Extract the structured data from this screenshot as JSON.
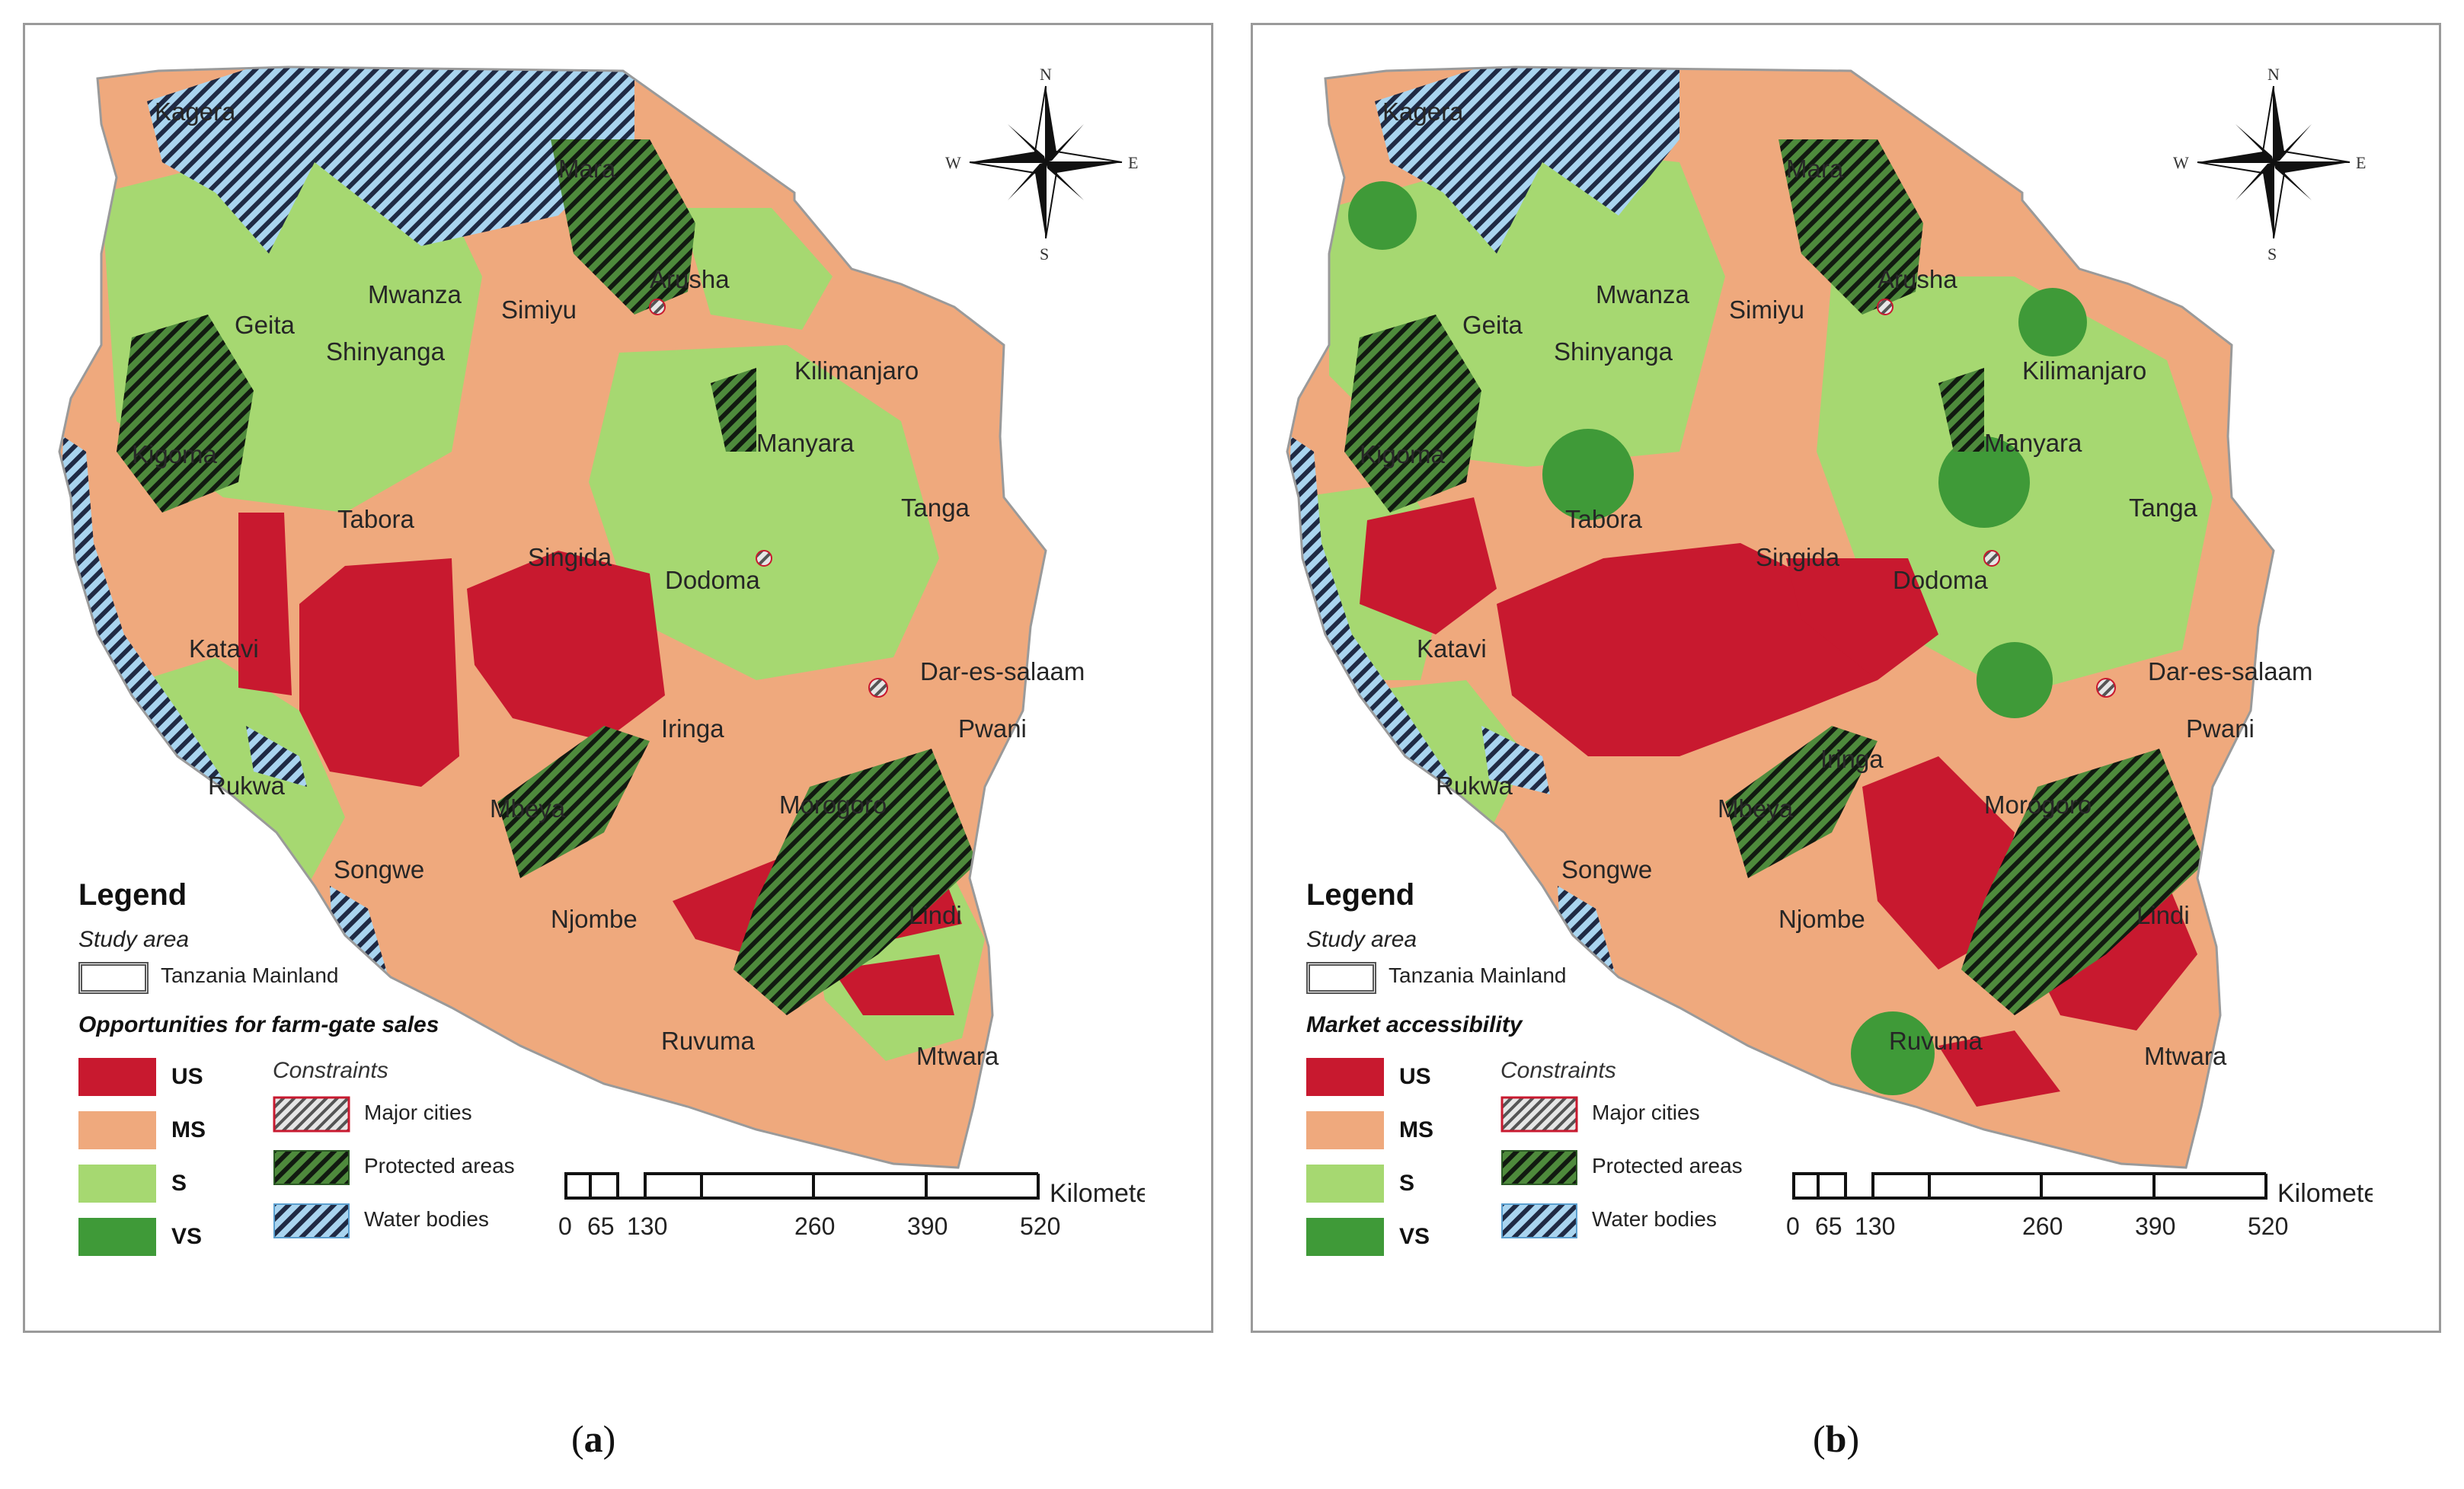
{
  "panels": [
    {
      "id": "a",
      "caption": "a",
      "legend_title": "Legend",
      "study_area_title": "Study area",
      "study_area_label": "Tanzania Mainland",
      "classification_title": "Opportunities for farm-gate sales",
      "classes": [
        {
          "code": "US",
          "color": "#c8192f"
        },
        {
          "code": "MS",
          "color": "#efa97d"
        },
        {
          "code": "S",
          "color": "#a6d871"
        },
        {
          "code": "VS",
          "color": "#3f9a38"
        }
      ],
      "constraints_title": "Constraints",
      "constraints": [
        {
          "label": "Major cities",
          "icon": "hatch-red-border"
        },
        {
          "label": "Protected areas",
          "icon": "hatch-green"
        },
        {
          "label": "Water bodies",
          "icon": "hatch-blue"
        }
      ],
      "scale": {
        "ticks": [
          "0",
          "65",
          "130",
          "260",
          "390",
          "520"
        ],
        "unit": "Kilometers"
      },
      "compass": {
        "n": "N",
        "s": "S",
        "e": "E",
        "w": "W"
      },
      "regions": [
        "Kagera",
        "Mara",
        "Mwanza",
        "Simiyu",
        "Arusha",
        "Geita",
        "Shinyanga",
        "Kilimanjaro",
        "Kigoma",
        "Manyara",
        "Tabora",
        "Tanga",
        "Singida",
        "Dodoma",
        "Katavi",
        "Dar-es-salaam",
        "Pwani",
        "Iringa",
        "Rukwa",
        "Mbeya",
        "Morogoro",
        "Songwe",
        "Lindi",
        "Njombe",
        "Ruvuma",
        "Mtwara"
      ]
    },
    {
      "id": "b",
      "caption": "b",
      "legend_title": "Legend",
      "study_area_title": "Study area",
      "study_area_label": "Tanzania Mainland",
      "classification_title": "Market accessibility",
      "classes": [
        {
          "code": "US",
          "color": "#c8192f"
        },
        {
          "code": "MS",
          "color": "#efa97d"
        },
        {
          "code": "S",
          "color": "#a6d871"
        },
        {
          "code": "VS",
          "color": "#3f9a38"
        }
      ],
      "constraints_title": "Constraints",
      "constraints": [
        {
          "label": "Major cities",
          "icon": "hatch-red-border"
        },
        {
          "label": "Protected areas",
          "icon": "hatch-green"
        },
        {
          "label": "Water bodies",
          "icon": "hatch-blue"
        }
      ],
      "scale": {
        "ticks": [
          "0",
          "65",
          "130",
          "260",
          "390",
          "520"
        ],
        "unit": "Kilometers"
      },
      "compass": {
        "n": "N",
        "s": "S",
        "e": "E",
        "w": "W"
      },
      "regions": [
        "Kagera",
        "Mara",
        "Mwanza",
        "Simiyu",
        "Arusha",
        "Geita",
        "Shinyanga",
        "Kilimanjaro",
        "Kigoma",
        "Manyara",
        "Tabora",
        "Tanga",
        "Singida",
        "Dodoma",
        "Katavi",
        "Dar-es-salaam",
        "Pwani",
        "Iringa",
        "Rukwa",
        "Mbeya",
        "Morogoro",
        "Songwe",
        "Lindi",
        "Njombe",
        "Ruvuma",
        "Mtwara"
      ]
    }
  ]
}
